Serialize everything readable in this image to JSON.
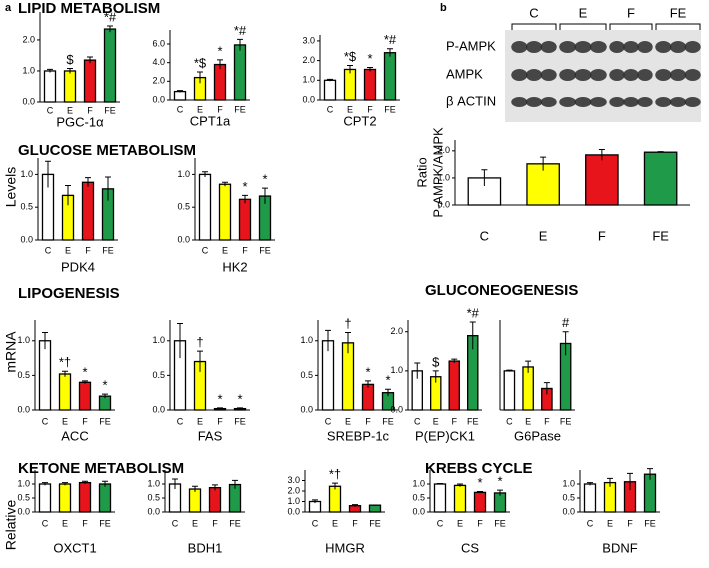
{
  "panel_labels": [
    "a",
    "b"
  ],
  "sections": [
    "LIPID METABOLISM",
    "GLUCOSE METABOLISM",
    "LIPOGENESIS",
    "GLUCONEOGENESIS",
    "KETONE METABOLISM",
    "KREBS CYCLE"
  ],
  "y_label": [
    "Relative",
    "mRNA",
    "Levels"
  ],
  "blot": {
    "groups": [
      "C",
      "E",
      "F",
      "FE"
    ],
    "rows": [
      "P-AMPK",
      "AMPK",
      "β ACTIN"
    ]
  },
  "chart_data": [
    {
      "type": "bar",
      "title": "PGC-1α",
      "categories": [
        "C",
        "E",
        "F",
        "FE"
      ],
      "values": [
        1.0,
        1.0,
        1.35,
        2.35
      ],
      "errors": [
        0.05,
        0.08,
        0.1,
        0.1
      ],
      "colors": [
        "#ffffff",
        "#ffff00",
        "#e8141c",
        "#1e9a48"
      ],
      "ylim": [
        0,
        2.9
      ],
      "yticks": [
        {
          "value": 0,
          "label": "0.0"
        },
        {
          "value": 1,
          "label": "1.0"
        },
        {
          "value": 2,
          "label": "2.0"
        }
      ],
      "annotations": [
        {
          "category": "E",
          "text": "$"
        },
        {
          "category": "FE",
          "text": "*#"
        }
      ]
    },
    {
      "type": "bar",
      "title": "CPT1a",
      "categories": [
        "C",
        "E",
        "F",
        "FE"
      ],
      "values": [
        0.9,
        2.4,
        3.8,
        5.9
      ],
      "errors": [
        0.1,
        0.6,
        0.5,
        0.6
      ],
      "colors": [
        "#ffffff",
        "#ffff00",
        "#e8141c",
        "#1e9a48"
      ],
      "ylim": [
        0,
        7.5
      ],
      "yticks": [
        {
          "value": 0,
          "label": "0.0"
        },
        {
          "value": 2,
          "label": "2.0"
        },
        {
          "value": 4,
          "label": "4.0"
        },
        {
          "value": 6,
          "label": "6.0"
        }
      ],
      "annotations": [
        {
          "category": "E",
          "text": "*$"
        },
        {
          "category": "F",
          "text": "*"
        },
        {
          "category": "FE",
          "text": "*#"
        }
      ]
    },
    {
      "type": "bar",
      "title": "CPT2",
      "categories": [
        "C",
        "E",
        "F",
        "FE"
      ],
      "values": [
        1.0,
        1.55,
        1.55,
        2.4
      ],
      "errors": [
        0.05,
        0.2,
        0.1,
        0.2
      ],
      "colors": [
        "#ffffff",
        "#ffff00",
        "#e8141c",
        "#1e9a48"
      ],
      "ylim": [
        0,
        3.3
      ],
      "yticks": [
        {
          "value": 0,
          "label": "0.0"
        },
        {
          "value": 1,
          "label": "1.0"
        },
        {
          "value": 2,
          "label": "2.0"
        },
        {
          "value": 3,
          "label": "3.0"
        }
      ],
      "annotations": [
        {
          "category": "E",
          "text": "*$"
        },
        {
          "category": "F",
          "text": "*"
        },
        {
          "category": "FE",
          "text": "*#"
        }
      ]
    },
    {
      "type": "bar",
      "title": "PDK4",
      "categories": [
        "C",
        "E",
        "F",
        "FE"
      ],
      "values": [
        1.0,
        0.68,
        0.88,
        0.78
      ],
      "errors": [
        0.2,
        0.15,
        0.07,
        0.18
      ],
      "colors": [
        "#ffffff",
        "#ffff00",
        "#e8141c",
        "#1e9a48"
      ],
      "ylim": [
        0,
        1.25
      ],
      "yticks": [
        {
          "value": 0,
          "label": "0.0"
        },
        {
          "value": 0.5,
          "label": "0.5"
        },
        {
          "value": 1,
          "label": "1.0"
        }
      ]
    },
    {
      "type": "bar",
      "title": "HK2",
      "categories": [
        "C",
        "E",
        "F",
        "FE"
      ],
      "values": [
        1.0,
        0.85,
        0.62,
        0.67
      ],
      "errors": [
        0.04,
        0.03,
        0.06,
        0.12
      ],
      "colors": [
        "#ffffff",
        "#ffff00",
        "#e8141c",
        "#1e9a48"
      ],
      "ylim": [
        0,
        1.25
      ],
      "yticks": [
        {
          "value": 0,
          "label": "0.0"
        },
        {
          "value": 0.5,
          "label": "0.5"
        },
        {
          "value": 1,
          "label": "1.0"
        }
      ],
      "annotations": [
        {
          "category": "F",
          "text": "*"
        },
        {
          "category": "FE",
          "text": "*"
        }
      ]
    },
    {
      "type": "bar",
      "title": "ACC",
      "categories": [
        "C",
        "E",
        "F",
        "FE"
      ],
      "values": [
        1.0,
        0.52,
        0.4,
        0.2
      ],
      "errors": [
        0.12,
        0.04,
        0.02,
        0.03
      ],
      "colors": [
        "#ffffff",
        "#ffff00",
        "#e8141c",
        "#1e9a48"
      ],
      "ylim": [
        0,
        1.3
      ],
      "yticks": [
        {
          "value": 0,
          "label": "0.0"
        },
        {
          "value": 0.5,
          "label": "0.5"
        },
        {
          "value": 1,
          "label": "1.0"
        }
      ],
      "annotations": [
        {
          "category": "E",
          "text": "*†"
        },
        {
          "category": "F",
          "text": "*"
        },
        {
          "category": "FE",
          "text": "*"
        }
      ]
    },
    {
      "type": "bar",
      "title": "FAS",
      "categories": [
        "C",
        "E",
        "F",
        "FE"
      ],
      "values": [
        1.0,
        0.7,
        0.02,
        0.02
      ],
      "errors": [
        0.25,
        0.15,
        0.01,
        0.01
      ],
      "colors": [
        "#ffffff",
        "#ffff00",
        "#e8141c",
        "#1e9a48"
      ],
      "ylim": [
        0,
        1.3
      ],
      "yticks": [
        {
          "value": 0,
          "label": "0.0"
        },
        {
          "value": 0.5,
          "label": "0.5"
        },
        {
          "value": 1,
          "label": "1.0"
        }
      ],
      "annotations": [
        {
          "category": "E",
          "text": "†"
        },
        {
          "category": "F",
          "text": "*"
        },
        {
          "category": "FE",
          "text": "*"
        }
      ]
    },
    {
      "type": "bar",
      "title": "SREBP-1c",
      "categories": [
        "C",
        "E",
        "F",
        "FE"
      ],
      "values": [
        1.0,
        0.97,
        0.37,
        0.25
      ],
      "errors": [
        0.15,
        0.15,
        0.05,
        0.05
      ],
      "colors": [
        "#ffffff",
        "#ffff00",
        "#e8141c",
        "#1e9a48"
      ],
      "ylim": [
        0,
        1.3
      ],
      "yticks": [
        {
          "value": 0,
          "label": "0.0"
        },
        {
          "value": 0.5,
          "label": "0.5"
        },
        {
          "value": 1,
          "label": "1.0"
        }
      ],
      "annotations": [
        {
          "category": "E",
          "text": "†"
        },
        {
          "category": "F",
          "text": "*"
        },
        {
          "category": "FE",
          "text": "*"
        }
      ]
    },
    {
      "type": "bar",
      "title": "P(EP)CK1",
      "categories": [
        "C",
        "E",
        "F",
        "FE"
      ],
      "values": [
        1.0,
        0.85,
        1.25,
        1.9
      ],
      "errors": [
        0.2,
        0.15,
        0.05,
        0.35
      ],
      "colors": [
        "#ffffff",
        "#ffff00",
        "#e8141c",
        "#1e9a48"
      ],
      "ylim": [
        0,
        2.3
      ],
      "yticks": [
        {
          "value": 0,
          "label": "0.0"
        },
        {
          "value": 1,
          "label": "1.0"
        },
        {
          "value": 2,
          "label": "2.0"
        }
      ],
      "annotations": [
        {
          "category": "E",
          "text": "$"
        },
        {
          "category": "FE",
          "text": "*#"
        }
      ]
    },
    {
      "type": "bar",
      "title": "G6Pase",
      "categories": [
        "C",
        "E",
        "F",
        "FE"
      ],
      "values": [
        1.0,
        1.1,
        0.55,
        1.7
      ],
      "errors": [
        0.02,
        0.15,
        0.15,
        0.3
      ],
      "colors": [
        "#ffffff",
        "#ffff00",
        "#e8141c",
        "#1e9a48"
      ],
      "ylim": [
        0,
        2.3
      ],
      "annotations": [
        {
          "category": "FE",
          "text": "#"
        }
      ]
    },
    {
      "type": "bar",
      "title": "OXCT1",
      "categories": [
        "C",
        "E",
        "F",
        "FE"
      ],
      "values": [
        1.0,
        1.0,
        1.05,
        1.0
      ],
      "errors": [
        0.05,
        0.05,
        0.05,
        0.1
      ],
      "colors": [
        "#ffffff",
        "#ffff00",
        "#e8141c",
        "#1e9a48"
      ],
      "ylim": [
        0,
        1.5
      ],
      "yticks": [
        {
          "value": 0,
          "label": "0.0"
        },
        {
          "value": 0.5,
          "label": "0.5"
        },
        {
          "value": 1,
          "label": "1.0"
        }
      ]
    },
    {
      "type": "bar",
      "title": "BDH1",
      "categories": [
        "C",
        "E",
        "F",
        "FE"
      ],
      "values": [
        1.0,
        0.82,
        0.87,
        0.98
      ],
      "errors": [
        0.18,
        0.1,
        0.1,
        0.15
      ],
      "colors": [
        "#ffffff",
        "#ffff00",
        "#e8141c",
        "#1e9a48"
      ],
      "ylim": [
        0,
        1.5
      ],
      "yticks": [
        {
          "value": 0,
          "label": "0.0"
        },
        {
          "value": 0.5,
          "label": "0.5"
        },
        {
          "value": 1,
          "label": "1.0"
        }
      ]
    },
    {
      "type": "bar",
      "title": "HMGR",
      "categories": [
        "C",
        "E",
        "F",
        "FE"
      ],
      "values": [
        1.0,
        2.45,
        0.6,
        0.65
      ],
      "errors": [
        0.15,
        0.3,
        0.1,
        0.02
      ],
      "colors": [
        "#ffffff",
        "#ffff00",
        "#e8141c",
        "#1e9a48"
      ],
      "ylim": [
        0,
        4
      ],
      "yticks": [
        {
          "value": 0,
          "label": "0.0"
        },
        {
          "value": 1,
          "label": "1.0"
        },
        {
          "value": 2,
          "label": "2.0"
        },
        {
          "value": 3,
          "label": "3.0"
        }
      ],
      "annotations": [
        {
          "category": "E",
          "text": "*†"
        }
      ]
    },
    {
      "type": "bar",
      "title": "CS",
      "categories": [
        "C",
        "E",
        "F",
        "FE"
      ],
      "values": [
        1.0,
        0.95,
        0.7,
        0.68
      ],
      "errors": [
        0.02,
        0.05,
        0.03,
        0.1
      ],
      "colors": [
        "#ffffff",
        "#ffff00",
        "#e8141c",
        "#1e9a48"
      ],
      "ylim": [
        0,
        1.5
      ],
      "yticks": [
        {
          "value": 0,
          "label": "0.0"
        },
        {
          "value": 0.5,
          "label": "0.5"
        },
        {
          "value": 1,
          "label": "1.0"
        }
      ],
      "annotations": [
        {
          "category": "F",
          "text": "*"
        },
        {
          "category": "FE",
          "text": "*"
        }
      ]
    },
    {
      "type": "bar",
      "title": "BDNF",
      "categories": [
        "C",
        "E",
        "F",
        "FE"
      ],
      "values": [
        1.0,
        1.05,
        1.08,
        1.35
      ],
      "errors": [
        0.05,
        0.15,
        0.3,
        0.2
      ],
      "colors": [
        "#ffffff",
        "#ffff00",
        "#e8141c",
        "#1e9a48"
      ],
      "ylim": [
        0,
        1.5
      ],
      "yticks": [
        {
          "value": 0,
          "label": "0.0"
        },
        {
          "value": 0.5,
          "label": "0.5"
        },
        {
          "value": 1,
          "label": "1.0"
        }
      ]
    },
    {
      "type": "bar",
      "y_label": [
        "Ratio",
        "P-AMPK/AMPK"
      ],
      "categories": [
        "C",
        "E",
        "F",
        "FE"
      ],
      "values": [
        1.0,
        1.52,
        1.85,
        1.95
      ],
      "errors": [
        0.3,
        0.25,
        0.2,
        0.02
      ],
      "colors": [
        "#ffffff",
        "#ffff00",
        "#e8141c",
        "#1e9a48"
      ],
      "ylim": [
        0,
        2.4
      ],
      "yticks": [
        {
          "value": 0,
          "label": "0.0"
        },
        {
          "value": 1,
          "label": "1.0"
        },
        {
          "value": 2,
          "label": "2.0"
        }
      ]
    }
  ]
}
